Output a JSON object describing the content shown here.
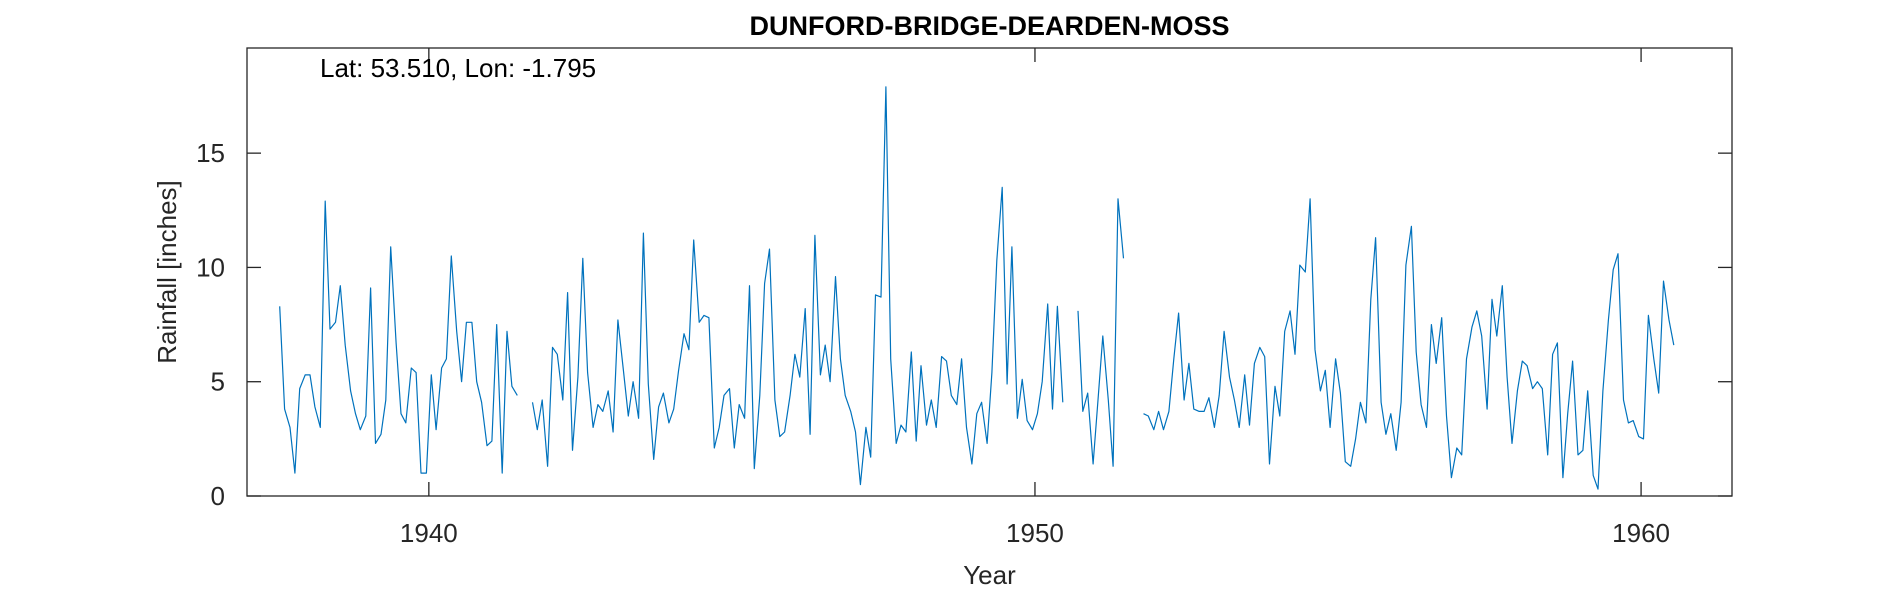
{
  "chart_data": {
    "type": "line",
    "title": "DUNFORD-BRIDGE-DEARDEN-MOSS",
    "xlabel": "Year",
    "ylabel": "Rainfall [inches]",
    "annotation": "Lat: 53.510, Lon: -1.795",
    "xlim": [
      1937,
      1961.5
    ],
    "ylim": [
      0,
      19.6
    ],
    "xticks": [
      1940,
      1950,
      1960
    ],
    "xtick_labels": [
      "1940",
      "1950",
      "1960"
    ],
    "yticks": [
      0,
      5,
      10,
      15
    ],
    "ytick_labels": [
      "0",
      "5",
      "10",
      "15"
    ],
    "grid": false,
    "legend": "none",
    "colors": {
      "series": "#0072BD",
      "axes": "#262626"
    },
    "series": [
      {
        "x": [
          1937.54,
          1937.62,
          1937.71,
          1937.79,
          1937.87,
          1937.96,
          1938.04,
          1938.12,
          1938.21,
          1938.29,
          1938.37,
          1938.46,
          1938.54,
          1938.62,
          1938.71,
          1938.79,
          1938.87,
          1938.96,
          1939.04,
          1939.12,
          1939.21,
          1939.29,
          1939.37,
          1939.46,
          1939.54,
          1939.62,
          1939.71,
          1939.79,
          1939.87,
          1939.96,
          1940.04,
          1940.12,
          1940.21,
          1940.29,
          1940.37,
          1940.46,
          1940.54,
          1940.62,
          1940.71,
          1940.79,
          1940.87,
          1940.96,
          1941.04,
          1941.12,
          1941.21,
          1941.29,
          1941.37,
          1941.46,
          1941.54,
          1941.62,
          1941.71,
          1941.79,
          1941.87,
          1941.96,
          1942.04,
          1942.12,
          1942.21,
          1942.29,
          1942.37,
          1942.46,
          1942.54,
          1942.62,
          1942.71,
          1942.79,
          1942.87,
          1942.96,
          1943.04,
          1943.12,
          1943.21,
          1943.29,
          1943.37,
          1943.46,
          1943.54,
          1943.62,
          1943.71,
          1943.79,
          1943.87,
          1943.96,
          1944.04,
          1944.12,
          1944.21,
          1944.29,
          1944.37,
          1944.46,
          1944.54,
          1944.62,
          1944.71,
          1944.79,
          1944.87,
          1944.96,
          1945.04,
          1945.12,
          1945.21,
          1945.29,
          1945.37,
          1945.46,
          1945.54,
          1945.62,
          1945.71,
          1945.79,
          1945.87,
          1945.96,
          1946.04,
          1946.12,
          1946.21,
          1946.29,
          1946.37,
          1946.46,
          1946.54,
          1946.62,
          1946.71,
          1946.79,
          1946.87,
          1946.96,
          1947.04,
          1947.12,
          1947.21,
          1947.29,
          1947.37,
          1947.46,
          1947.54,
          1947.62,
          1947.71,
          1947.79,
          1947.87,
          1947.96,
          1948.04,
          1948.12,
          1948.21,
          1948.29,
          1948.37,
          1948.46,
          1948.54,
          1948.62,
          1948.71,
          1948.79,
          1948.87,
          1948.96,
          1949.04,
          1949.12,
          1949.21,
          1949.29,
          1949.37,
          1949.46,
          1949.54,
          1949.62,
          1949.71,
          1949.79,
          1949.87,
          1949.96,
          1950.04,
          1950.12,
          1950.21,
          1950.29,
          1950.37,
          1950.46,
          1950.54,
          1950.62,
          1950.71,
          1950.79,
          1950.87,
          1950.96,
          1951.04,
          1951.12,
          1951.21,
          1951.29,
          1951.37,
          1951.46,
          1951.54,
          1951.62,
          1951.71,
          1951.79,
          1951.87,
          1951.96,
          1952.04,
          1952.12,
          1952.21,
          1952.29,
          1952.37,
          1952.46,
          1952.54,
          1952.62,
          1952.71,
          1952.79,
          1952.87,
          1952.96,
          1953.04,
          1953.12,
          1953.21,
          1953.29,
          1953.37,
          1953.46,
          1953.54,
          1953.62,
          1953.71,
          1953.79,
          1953.87,
          1953.96,
          1954.04,
          1954.12,
          1954.21,
          1954.29,
          1954.37,
          1954.46,
          1954.54,
          1954.62,
          1954.71,
          1954.79,
          1954.87,
          1954.96,
          1955.04,
          1955.12,
          1955.21,
          1955.29,
          1955.37,
          1955.46,
          1955.54,
          1955.62,
          1955.71,
          1955.79,
          1955.87,
          1955.96,
          1956.04,
          1956.12,
          1956.21,
          1956.29,
          1956.37,
          1956.46,
          1956.54,
          1956.62,
          1956.71,
          1956.79,
          1956.87,
          1956.96,
          1957.04,
          1957.12,
          1957.21,
          1957.29,
          1957.37,
          1957.46,
          1957.54,
          1957.62,
          1957.71,
          1957.79,
          1957.87,
          1957.96,
          1958.04,
          1958.12,
          1958.21,
          1958.29,
          1958.37,
          1958.46,
          1958.54,
          1958.62,
          1958.71,
          1958.79,
          1958.87,
          1958.96,
          1959.04,
          1959.12,
          1959.21,
          1959.29,
          1959.37,
          1959.46,
          1959.54,
          1959.62,
          1959.71,
          1959.79,
          1959.87,
          1959.96,
          1960.04,
          1960.12,
          1960.21,
          1960.29,
          1960.37,
          1960.46,
          1960.54
        ],
        "y": [
          8.3,
          3.8,
          3.0,
          1.0,
          4.7,
          5.3,
          5.3,
          3.9,
          3.0,
          12.9,
          7.3,
          7.6,
          9.2,
          6.6,
          4.6,
          3.6,
          2.9,
          3.5,
          9.1,
          2.3,
          2.7,
          4.2,
          10.9,
          6.7,
          3.6,
          3.2,
          5.6,
          5.4,
          1.0,
          1.0,
          5.3,
          2.9,
          5.6,
          6.0,
          10.5,
          7.2,
          5.0,
          7.6,
          7.6,
          5.0,
          4.1,
          2.2,
          2.4,
          7.5,
          1.0,
          7.2,
          4.8,
          4.4,
          null,
          null,
          4.1,
          2.9,
          4.2,
          1.3,
          6.5,
          6.2,
          4.2,
          8.9,
          2.0,
          5.2,
          10.4,
          5.4,
          3.0,
          4.0,
          3.7,
          4.6,
          2.8,
          7.7,
          5.5,
          3.5,
          5.0,
          3.4,
          11.5,
          4.9,
          1.6,
          3.9,
          4.5,
          3.2,
          3.8,
          5.5,
          7.1,
          6.4,
          11.2,
          7.6,
          7.9,
          7.8,
          2.1,
          3.0,
          4.4,
          4.7,
          2.1,
          4.0,
          3.4,
          9.2,
          1.2,
          4.4,
          9.3,
          10.8,
          4.2,
          2.6,
          2.8,
          4.4,
          6.2,
          5.2,
          8.2,
          2.7,
          11.4,
          5.3,
          6.6,
          5.0,
          9.6,
          6.0,
          4.4,
          3.7,
          2.8,
          0.5,
          3.0,
          1.7,
          8.8,
          8.7,
          17.9,
          6.0,
          2.3,
          3.1,
          2.8,
          6.3,
          2.4,
          5.7,
          3.1,
          4.2,
          3.0,
          6.1,
          5.9,
          4.4,
          4.0,
          6.0,
          3.0,
          1.4,
          3.6,
          4.1,
          2.3,
          5.4,
          10.3,
          13.5,
          4.9,
          10.9,
          3.4,
          5.1,
          3.3,
          2.9,
          3.6,
          5.0,
          8.4,
          3.8,
          8.3,
          4.1,
          null,
          null,
          8.1,
          3.7,
          4.5,
          1.4,
          4.2,
          7.0,
          4.2,
          1.3,
          13.0,
          10.4,
          null,
          null,
          null,
          3.6,
          3.5,
          2.9,
          3.7,
          2.9,
          3.7,
          6.0,
          8.0,
          4.2,
          5.8,
          3.8,
          3.7,
          3.7,
          4.3,
          3.0,
          4.4,
          7.2,
          5.2,
          4.2,
          3.0,
          5.3,
          3.1,
          5.8,
          6.5,
          6.1,
          1.4,
          4.8,
          3.5,
          7.2,
          8.1,
          6.2,
          10.1,
          9.8,
          13.0,
          6.4,
          4.6,
          5.5,
          3.0,
          6.0,
          4.5,
          1.5,
          1.3,
          2.5,
          4.1,
          3.2,
          8.6,
          11.3,
          4.1,
          2.7,
          3.6,
          2.0,
          4.1,
          10.1,
          11.8,
          6.3,
          4.0,
          3.0,
          7.5,
          5.8,
          7.8,
          3.5,
          0.8,
          2.1,
          1.8,
          6.0,
          7.4,
          8.1,
          7.0,
          3.8,
          8.6,
          7.0,
          9.2,
          5.2,
          2.3,
          4.6,
          5.9,
          5.7,
          4.7,
          5.0,
          4.7,
          1.8,
          6.2,
          6.7,
          0.8,
          3.6,
          5.9,
          1.8,
          2.0,
          4.6,
          0.9,
          0.3,
          4.6,
          7.7,
          9.9,
          10.6,
          4.2,
          3.2,
          3.3,
          2.6,
          2.5,
          7.9,
          6.0,
          4.5,
          9.4,
          7.7,
          6.6
        ]
      }
    ]
  }
}
